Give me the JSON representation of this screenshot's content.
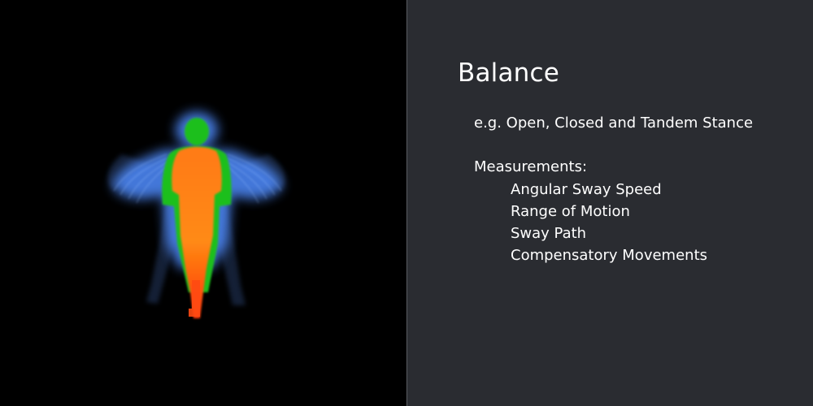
{
  "slide": {
    "title": "Balance",
    "example_line": "e.g. Open, Closed and Tandem Stance",
    "measurements_heading": "Measurements:",
    "measurements": [
      "Angular Sway Speed",
      "Range of Motion",
      "Sway Path",
      "Compensatory Movements"
    ]
  },
  "colors": {
    "left_background": "#000000",
    "right_background": "#2a2c31",
    "text": "#ffffff",
    "heatmap_high": "#ff6a1a",
    "heatmap_mid": "#22c21a",
    "heatmap_low": "#5aa0ff"
  }
}
